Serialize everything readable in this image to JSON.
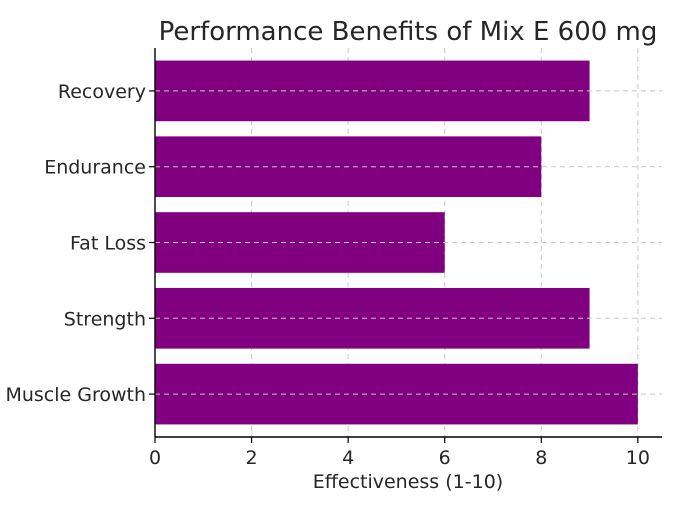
{
  "chart_data": {
    "type": "bar",
    "orientation": "horizontal",
    "title": "Performance Benefits of Mix E 600 mg",
    "xlabel": "Effectiveness (1-10)",
    "ylabel": "",
    "categories": [
      "Muscle Growth",
      "Strength",
      "Fat Loss",
      "Endurance",
      "Recovery"
    ],
    "values": [
      10,
      9,
      6,
      8,
      9
    ],
    "xlim": [
      0,
      10.5
    ],
    "xticks": [
      0,
      2,
      4,
      6,
      8,
      10
    ],
    "grid": true,
    "bar_color": "#800080"
  }
}
